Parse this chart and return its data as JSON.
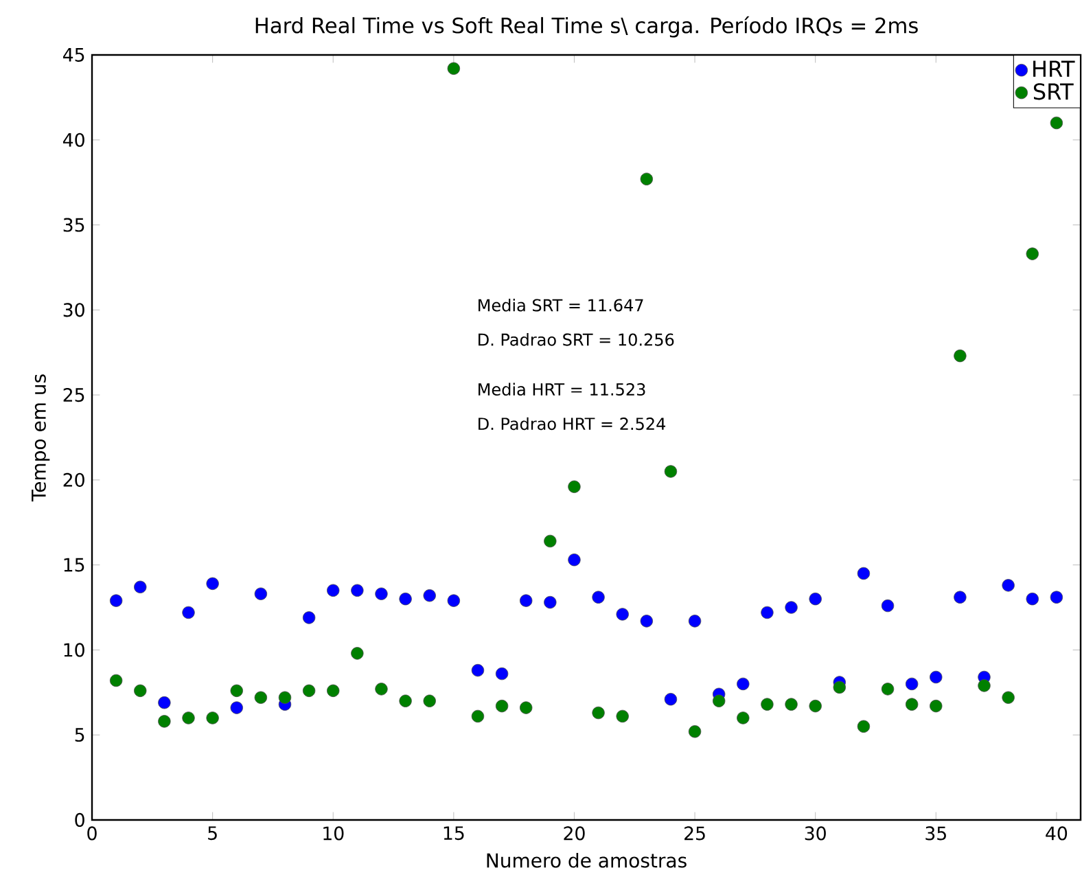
{
  "chart_data": {
    "type": "scatter",
    "title": "Hard Real Time vs Soft Real Time s\\ carga. Período IRQs = 2ms",
    "xlabel": "Numero de amostras",
    "ylabel": "Tempo em us",
    "x": [
      1,
      2,
      3,
      4,
      5,
      6,
      7,
      8,
      9,
      10,
      11,
      12,
      13,
      14,
      15,
      16,
      17,
      18,
      19,
      20,
      21,
      22,
      23,
      24,
      25,
      26,
      27,
      28,
      29,
      30,
      31,
      32,
      33,
      34,
      35,
      36,
      37,
      38,
      39,
      40
    ],
    "series": [
      {
        "name": "HRT",
        "color": "#0000ff",
        "values": [
          12.9,
          13.7,
          6.9,
          12.2,
          13.9,
          6.6,
          13.3,
          6.8,
          11.9,
          13.5,
          13.5,
          13.3,
          13.0,
          13.2,
          12.9,
          8.8,
          8.6,
          12.9,
          12.8,
          15.3,
          13.1,
          12.1,
          11.7,
          7.1,
          11.7,
          7.4,
          8.0,
          12.2,
          12.5,
          13.0,
          8.1,
          14.5,
          12.6,
          8.0,
          8.4,
          13.1,
          8.4,
          13.8,
          13.0,
          13.1
        ]
      },
      {
        "name": "SRT",
        "color": "#008000",
        "values": [
          8.2,
          7.6,
          5.8,
          6.0,
          6.0,
          7.6,
          7.2,
          7.2,
          7.6,
          7.6,
          9.8,
          7.7,
          7.0,
          7.0,
          44.2,
          6.1,
          6.7,
          6.6,
          16.4,
          19.6,
          6.3,
          6.1,
          37.7,
          20.5,
          5.2,
          7.0,
          6.0,
          6.8,
          6.8,
          6.7,
          7.8,
          5.5,
          7.7,
          6.8,
          6.7,
          27.3,
          7.9,
          7.2,
          33.3,
          41.0
        ]
      }
    ],
    "annotations": [
      "Media SRT = 11.647",
      "D. Padrao SRT = 10.256",
      "Media HRT =  11.523",
      "D. Padrao HRT = 2.524"
    ],
    "xlim": [
      0,
      41
    ],
    "ylim": [
      0,
      45
    ],
    "xticks": [
      0,
      5,
      10,
      15,
      20,
      25,
      30,
      35,
      40
    ],
    "yticks": [
      0,
      5,
      10,
      15,
      20,
      25,
      30,
      35,
      40,
      45
    ],
    "grid": false,
    "legend": "top right",
    "marker": "circle"
  }
}
